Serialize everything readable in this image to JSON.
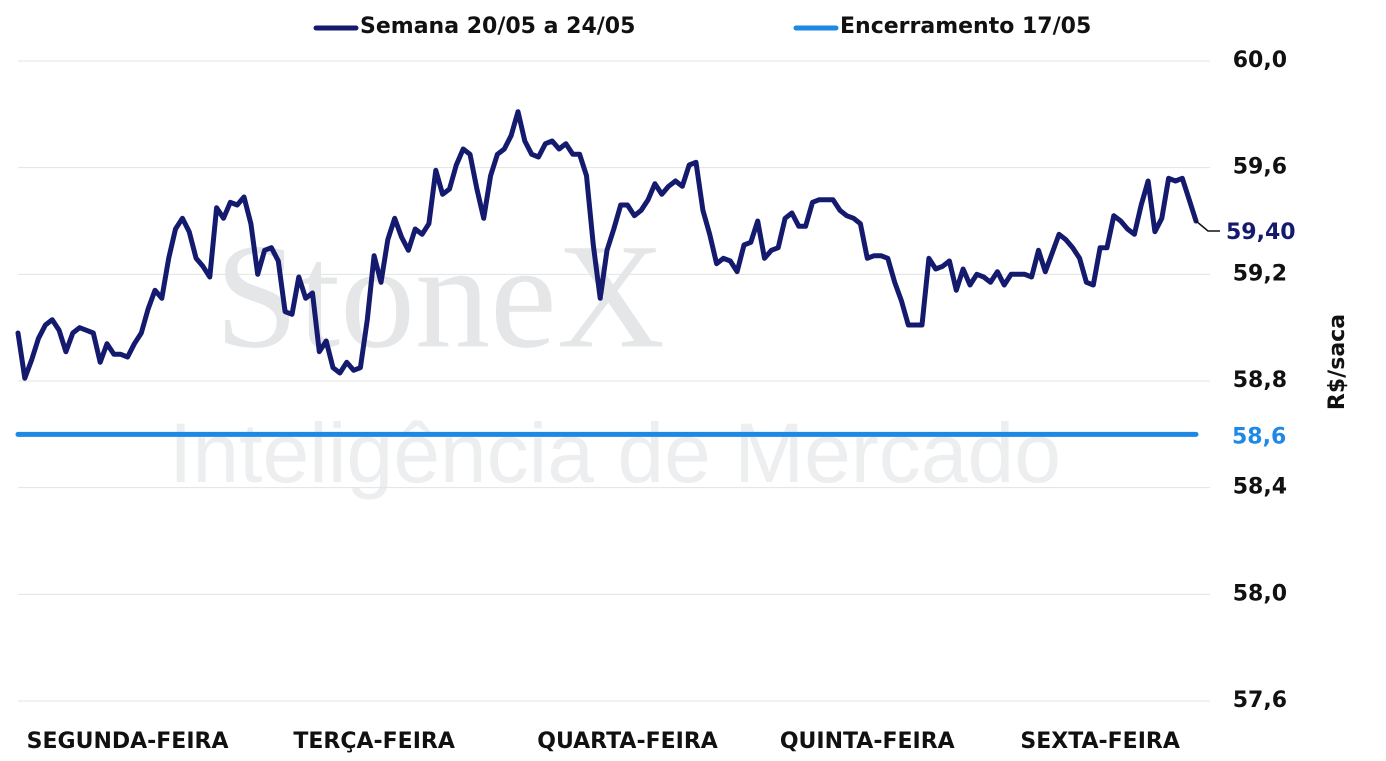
{
  "chart_data": {
    "type": "line",
    "legend": "top",
    "watermark": [
      "StoneX",
      "Inteligência de Mercado"
    ],
    "y_axis_label": "R$/saca",
    "y_axis_side": "right",
    "grid": true,
    "ylim": [
      57.6,
      60.0
    ],
    "yticks": [
      {
        "value": 57.6,
        "label": "57,6"
      },
      {
        "value": 58.0,
        "label": "58,0"
      },
      {
        "value": 58.4,
        "label": "58,4"
      },
      {
        "value": 58.8,
        "label": "58,8"
      },
      {
        "value": 59.2,
        "label": "59,2"
      },
      {
        "value": 59.6,
        "label": "59,6"
      },
      {
        "value": 60.0,
        "label": "60,0"
      }
    ],
    "categories": [
      null,
      null,
      null,
      null,
      null,
      null,
      null,
      null,
      null,
      null,
      null,
      null,
      null,
      null,
      null,
      null,
      "SEGUNDA-FEIRA",
      null,
      null,
      null,
      null,
      null,
      null,
      null,
      null,
      null,
      null,
      null,
      null,
      null,
      null,
      null,
      null,
      null,
      null,
      null,
      null,
      null,
      null,
      null,
      null,
      null,
      null,
      null,
      null,
      null,
      null,
      null,
      null,
      null,
      null,
      null,
      "TERÇA-FEIRA",
      null,
      null,
      null,
      null,
      null,
      null,
      null,
      null,
      null,
      null,
      null,
      null,
      null,
      null,
      null,
      null,
      null,
      null,
      null,
      null,
      null,
      null,
      null,
      null,
      null,
      null,
      null,
      null,
      null,
      null,
      null,
      null,
      null,
      null,
      null,
      null,
      "QUARTA-FEIRA",
      null,
      null,
      null,
      null,
      null,
      null,
      null,
      null,
      null,
      null,
      null,
      null,
      null,
      null,
      null,
      null,
      null,
      null,
      null,
      null,
      null,
      null,
      null,
      null,
      null,
      null,
      null,
      null,
      null,
      null,
      null,
      null,
      null,
      null,
      "QUINTA-FEIRA",
      null,
      null,
      null,
      null,
      null,
      null,
      null,
      null,
      null,
      null,
      null,
      null,
      null,
      null,
      null,
      null,
      null,
      null,
      null,
      null,
      null,
      null,
      null,
      null,
      null,
      null,
      null,
      null,
      null,
      null,
      null,
      null,
      null,
      "SEXTA-FEIRA",
      null,
      null,
      null,
      null,
      null,
      null,
      null,
      null,
      null,
      null,
      null,
      null,
      null,
      null
    ],
    "series": [
      {
        "name": "Semana 20/05 a 24/05",
        "color": "#141a6e",
        "last_value_label": "59,40",
        "values": [
          58.98,
          58.81,
          58.88,
          58.96,
          59.01,
          59.03,
          58.99,
          58.91,
          58.98,
          59.0,
          58.99,
          58.98,
          58.87,
          58.94,
          58.9,
          58.9,
          58.89,
          58.94,
          58.98,
          59.07,
          59.14,
          59.11,
          59.26,
          59.37,
          59.41,
          59.36,
          59.26,
          59.23,
          59.19,
          59.45,
          59.41,
          59.47,
          59.46,
          59.49,
          59.39,
          59.2,
          59.29,
          59.3,
          59.25,
          59.06,
          59.05,
          59.19,
          59.11,
          59.13,
          58.91,
          58.95,
          58.85,
          58.83,
          58.87,
          58.84,
          58.85,
          59.03,
          59.27,
          59.17,
          59.33,
          59.41,
          59.34,
          59.29,
          59.37,
          59.35,
          59.39,
          59.59,
          59.5,
          59.52,
          59.61,
          59.67,
          59.65,
          59.52,
          59.41,
          59.57,
          59.65,
          59.67,
          59.72,
          59.81,
          59.7,
          59.65,
          59.64,
          59.69,
          59.7,
          59.67,
          59.69,
          59.65,
          59.65,
          59.57,
          59.31,
          59.11,
          59.29,
          59.37,
          59.46,
          59.46,
          59.42,
          59.44,
          59.48,
          59.54,
          59.5,
          59.53,
          59.55,
          59.53,
          59.61,
          59.62,
          59.44,
          59.35,
          59.24,
          59.26,
          59.25,
          59.21,
          59.31,
          59.32,
          59.4,
          59.26,
          59.29,
          59.3,
          59.41,
          59.43,
          59.38,
          59.38,
          59.47,
          59.48,
          59.48,
          59.48,
          59.44,
          59.42,
          59.41,
          59.39,
          59.26,
          59.27,
          59.27,
          59.26,
          59.17,
          59.1,
          59.01,
          59.01,
          59.01,
          59.26,
          59.22,
          59.23,
          59.25,
          59.14,
          59.22,
          59.16,
          59.2,
          59.19,
          59.17,
          59.21,
          59.16,
          59.2,
          59.2,
          59.2,
          59.19,
          59.29,
          59.21,
          59.28,
          59.35,
          59.33,
          59.3,
          59.26,
          59.17,
          59.16,
          59.3,
          59.3,
          59.42,
          59.4,
          59.37,
          59.35,
          59.46,
          59.55,
          59.36,
          59.41,
          59.56,
          59.55,
          59.56,
          59.48,
          59.4
        ]
      }
    ],
    "reference_lines": [
      {
        "name": "Encerramento 17/05",
        "color": "#1e88e5",
        "value": 58.6,
        "value_label": "58,6"
      }
    ]
  }
}
